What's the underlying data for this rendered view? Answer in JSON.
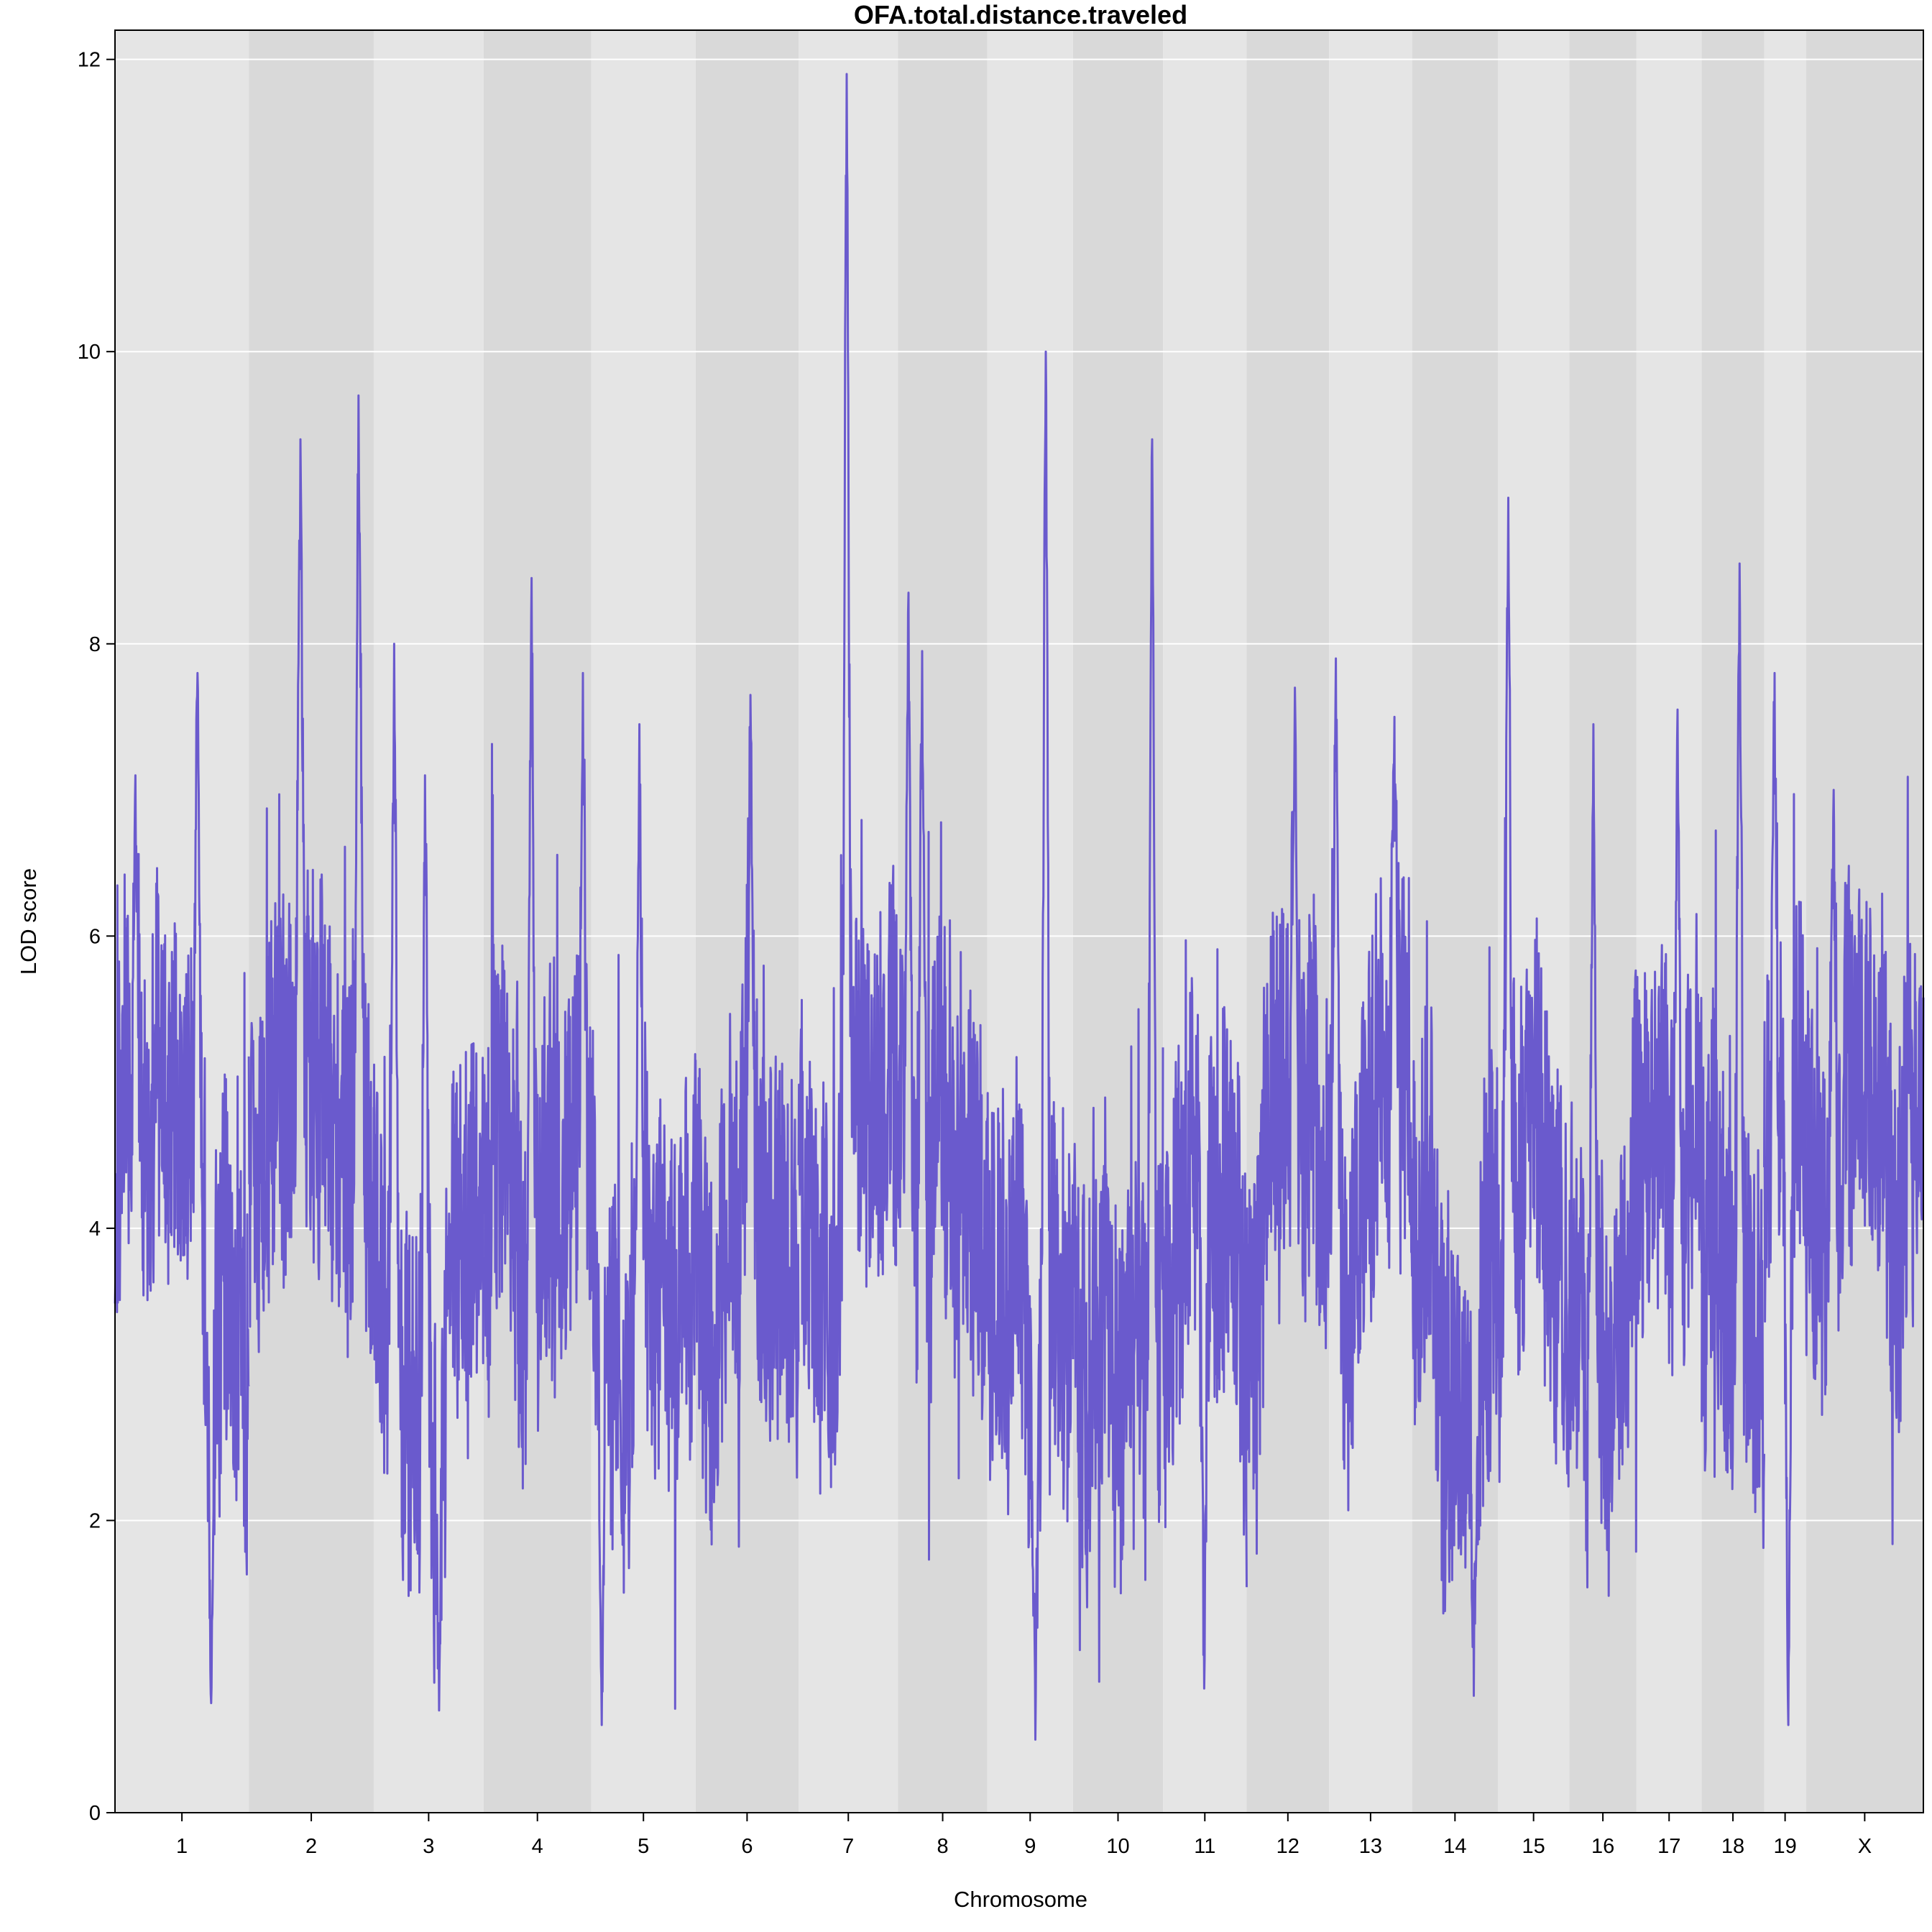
{
  "chart_data": {
    "type": "line",
    "title": "OFA.total.distance.traveled",
    "xlabel": "Chromosome",
    "ylabel": "LOD score",
    "ylim": [
      0,
      12.2
    ],
    "yticks": [
      0,
      2,
      4,
      6,
      8,
      10,
      12
    ],
    "grid": true,
    "legend": "none",
    "colors": {
      "line": "#6a5acd",
      "band_light": "#e5e5e5",
      "band_dark": "#d9d9d9",
      "gridline": "#ffffff"
    },
    "chromosomes": [
      {
        "label": "1",
        "length_mb": 195
      },
      {
        "label": "2",
        "length_mb": 182
      },
      {
        "label": "3",
        "length_mb": 160
      },
      {
        "label": "4",
        "length_mb": 157
      },
      {
        "label": "5",
        "length_mb": 152
      },
      {
        "label": "6",
        "length_mb": 150
      },
      {
        "label": "7",
        "length_mb": 145
      },
      {
        "label": "8",
        "length_mb": 130
      },
      {
        "label": "9",
        "length_mb": 125
      },
      {
        "label": "10",
        "length_mb": 131
      },
      {
        "label": "11",
        "length_mb": 122
      },
      {
        "label": "12",
        "length_mb": 120
      },
      {
        "label": "13",
        "length_mb": 121
      },
      {
        "label": "14",
        "length_mb": 125
      },
      {
        "label": "15",
        "length_mb": 104
      },
      {
        "label": "16",
        "length_mb": 98
      },
      {
        "label": "17",
        "length_mb": 95
      },
      {
        "label": "18",
        "length_mb": 91
      },
      {
        "label": "19",
        "length_mb": 61
      },
      {
        "label": "X",
        "length_mb": 171
      }
    ],
    "series": [
      {
        "peaks": [
          {
            "chr": "1",
            "pos_mb": 30,
            "lod": 7.1
          },
          {
            "chr": "1",
            "pos_mb": 120,
            "lod": 7.8
          },
          {
            "chr": "1",
            "pos_mb": 140,
            "lod": 0.75
          },
          {
            "chr": "2",
            "pos_mb": 75,
            "lod": 9.4
          },
          {
            "chr": "2",
            "pos_mb": 160,
            "lod": 9.7
          },
          {
            "chr": "3",
            "pos_mb": 30,
            "lod": 8.0
          },
          {
            "chr": "3",
            "pos_mb": 75,
            "lod": 7.1
          },
          {
            "chr": "3",
            "pos_mb": 95,
            "lod": 0.7
          },
          {
            "chr": "4",
            "pos_mb": 70,
            "lod": 8.45
          },
          {
            "chr": "4",
            "pos_mb": 145,
            "lod": 7.8
          },
          {
            "chr": "5",
            "pos_mb": 15,
            "lod": 0.6
          },
          {
            "chr": "5",
            "pos_mb": 70,
            "lod": 7.45
          },
          {
            "chr": "6",
            "pos_mb": 80,
            "lod": 7.65
          },
          {
            "chr": "7",
            "pos_mb": 70,
            "lod": 11.9
          },
          {
            "chr": "8",
            "pos_mb": 15,
            "lod": 8.35
          },
          {
            "chr": "8",
            "pos_mb": 35,
            "lod": 7.95
          },
          {
            "chr": "9",
            "pos_mb": 70,
            "lod": 0.5
          },
          {
            "chr": "9",
            "pos_mb": 85,
            "lod": 10.0
          },
          {
            "chr": "10",
            "pos_mb": 115,
            "lod": 9.4
          },
          {
            "chr": "11",
            "pos_mb": 60,
            "lod": 0.85
          },
          {
            "chr": "12",
            "pos_mb": 70,
            "lod": 7.7
          },
          {
            "chr": "13",
            "pos_mb": 10,
            "lod": 7.9
          },
          {
            "chr": "13",
            "pos_mb": 95,
            "lod": 7.5
          },
          {
            "chr": "14",
            "pos_mb": 90,
            "lod": 0.8
          },
          {
            "chr": "15",
            "pos_mb": 15,
            "lod": 9.0
          },
          {
            "chr": "16",
            "pos_mb": 35,
            "lod": 7.45
          },
          {
            "chr": "17",
            "pos_mb": 60,
            "lod": 7.55
          },
          {
            "chr": "18",
            "pos_mb": 55,
            "lod": 8.55
          },
          {
            "chr": "19",
            "pos_mb": 15,
            "lod": 7.8
          },
          {
            "chr": "19",
            "pos_mb": 35,
            "lod": 0.6
          },
          {
            "chr": "X",
            "pos_mb": 40,
            "lod": 7.0
          }
        ]
      }
    ]
  }
}
